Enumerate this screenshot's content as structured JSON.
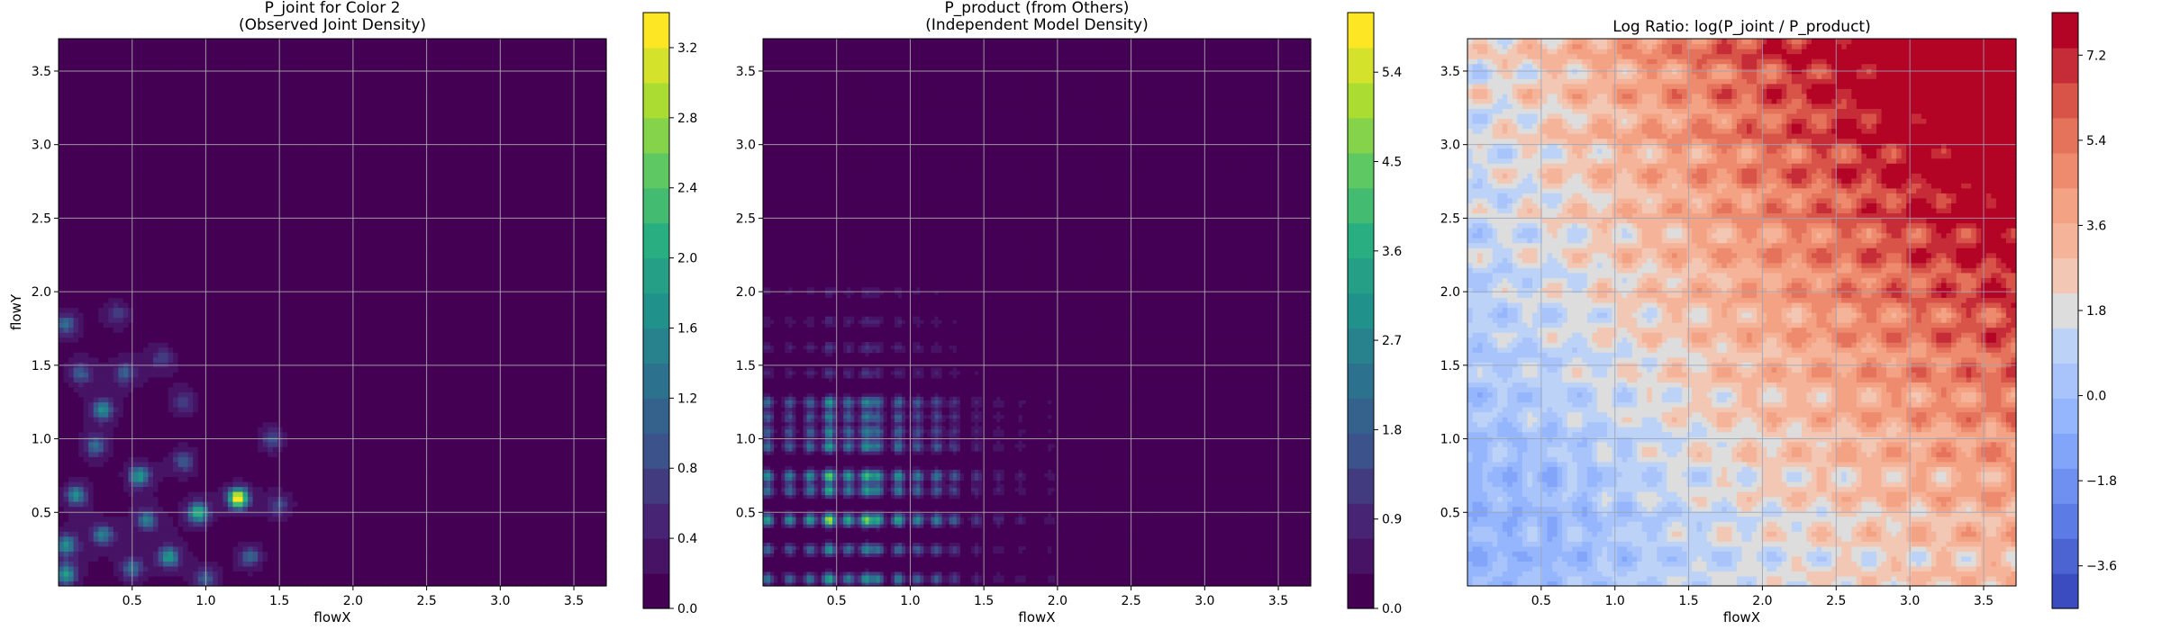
{
  "chart_data": [
    {
      "type": "heatmap",
      "style": "filled-contour",
      "colormap": "viridis",
      "title": "P_joint for Color 2\n(Observed Joint Density)",
      "xlabel": "flowX",
      "ylabel": "flowY",
      "xlim": [
        0.0,
        3.72
      ],
      "ylim": [
        0.0,
        3.72
      ],
      "xticks": [
        "0.5",
        "1.0",
        "1.5",
        "2.0",
        "2.5",
        "3.0",
        "3.5"
      ],
      "yticks": [
        "0.5",
        "1.0",
        "1.5",
        "2.0",
        "2.5",
        "3.0",
        "3.5"
      ],
      "grid": true,
      "background_level": 0.0,
      "peaks": [
        {
          "x": 0.05,
          "y": 0.08,
          "value": 1.6
        },
        {
          "x": 0.05,
          "y": 0.28,
          "value": 1.4
        },
        {
          "x": 0.12,
          "y": 0.62,
          "value": 1.4
        },
        {
          "x": 0.05,
          "y": 1.78,
          "value": 1.0
        },
        {
          "x": 0.3,
          "y": 1.2,
          "value": 1.4
        },
        {
          "x": 0.3,
          "y": 0.35,
          "value": 1.2
        },
        {
          "x": 0.55,
          "y": 0.75,
          "value": 1.6
        },
        {
          "x": 0.6,
          "y": 0.45,
          "value": 1.2
        },
        {
          "x": 0.75,
          "y": 0.2,
          "value": 1.6
        },
        {
          "x": 0.5,
          "y": 0.12,
          "value": 1.0
        },
        {
          "x": 0.25,
          "y": 0.95,
          "value": 1.0
        },
        {
          "x": 0.45,
          "y": 1.45,
          "value": 0.8
        },
        {
          "x": 0.95,
          "y": 0.5,
          "value": 2.0
        },
        {
          "x": 1.22,
          "y": 0.6,
          "value": 3.3
        },
        {
          "x": 0.85,
          "y": 0.85,
          "value": 0.8
        },
        {
          "x": 1.3,
          "y": 0.2,
          "value": 0.9
        },
        {
          "x": 1.45,
          "y": 1.0,
          "value": 0.7
        },
        {
          "x": 1.5,
          "y": 0.55,
          "value": 0.6
        },
        {
          "x": 0.15,
          "y": 1.45,
          "value": 0.8
        },
        {
          "x": 0.85,
          "y": 1.25,
          "value": 0.6
        },
        {
          "x": 0.4,
          "y": 1.85,
          "value": 0.5
        },
        {
          "x": 1.0,
          "y": 0.05,
          "value": 0.8
        },
        {
          "x": 0.7,
          "y": 1.55,
          "value": 0.5
        }
      ],
      "colorbar": {
        "min": 0.0,
        "max": 3.4,
        "ticks": [
          0.0,
          0.4,
          0.8,
          1.2,
          1.6,
          2.0,
          2.4,
          2.8,
          3.2
        ],
        "tick_labels": [
          "0.0",
          "0.4",
          "0.8",
          "1.2",
          "1.6",
          "2.0",
          "2.4",
          "2.8",
          "3.2"
        ]
      }
    },
    {
      "type": "heatmap",
      "style": "filled-contour",
      "colormap": "viridis",
      "title": "P_product (from Others)\n(Independent Model Density)",
      "xlabel": "flowX",
      "ylabel": "",
      "xlim": [
        0.0,
        3.72
      ],
      "ylim": [
        0.0,
        3.72
      ],
      "xticks": [
        "0.5",
        "1.0",
        "1.5",
        "2.0",
        "2.5",
        "3.0",
        "3.5"
      ],
      "yticks": [
        "0.5",
        "1.0",
        "1.5",
        "2.0",
        "2.5",
        "3.0",
        "3.5"
      ],
      "grid": true,
      "background_level": 0.0,
      "marginal_x_peaks": [
        {
          "x": 0.03,
          "value": 1.5
        },
        {
          "x": 0.18,
          "value": 1.3
        },
        {
          "x": 0.32,
          "value": 1.5
        },
        {
          "x": 0.45,
          "value": 2.3
        },
        {
          "x": 0.58,
          "value": 1.6
        },
        {
          "x": 0.7,
          "value": 2.0
        },
        {
          "x": 0.78,
          "value": 1.6
        },
        {
          "x": 0.92,
          "value": 1.6
        },
        {
          "x": 1.05,
          "value": 1.3
        },
        {
          "x": 1.18,
          "value": 1.2
        },
        {
          "x": 1.3,
          "value": 0.9
        },
        {
          "x": 1.45,
          "value": 0.6
        },
        {
          "x": 1.6,
          "value": 0.45
        },
        {
          "x": 1.75,
          "value": 0.35
        },
        {
          "x": 1.95,
          "value": 0.3
        }
      ],
      "marginal_y_peaks": [
        {
          "y": 0.05,
          "value": 1.6
        },
        {
          "y": 0.25,
          "value": 1.4
        },
        {
          "y": 0.45,
          "value": 2.3
        },
        {
          "y": 0.65,
          "value": 1.6
        },
        {
          "y": 0.75,
          "value": 2.0
        },
        {
          "y": 0.95,
          "value": 1.5
        },
        {
          "y": 1.05,
          "value": 1.3
        },
        {
          "y": 1.15,
          "value": 1.2
        },
        {
          "y": 1.25,
          "value": 1.4
        },
        {
          "y": 1.45,
          "value": 0.6
        },
        {
          "y": 1.62,
          "value": 0.55
        },
        {
          "y": 1.8,
          "value": 0.45
        },
        {
          "y": 2.0,
          "value": 0.35
        }
      ],
      "colorbar": {
        "min": 0.0,
        "max": 6.0,
        "ticks": [
          0.0,
          0.9,
          1.8,
          2.7,
          3.6,
          4.5,
          5.4
        ],
        "tick_labels": [
          "0.0",
          "0.9",
          "1.8",
          "2.7",
          "3.6",
          "4.5",
          "5.4"
        ]
      }
    },
    {
      "type": "heatmap",
      "style": "filled-contour",
      "colormap": "coolwarm",
      "title": "Log Ratio: log(P_joint / P_product)",
      "xlabel": "flowX",
      "ylabel": "",
      "xlim": [
        0.0,
        3.72
      ],
      "ylim": [
        0.0,
        3.72
      ],
      "xticks": [
        "0.5",
        "1.0",
        "1.5",
        "2.0",
        "2.5",
        "3.0",
        "3.5"
      ],
      "yticks": [
        "0.5",
        "1.0",
        "1.5",
        "2.0",
        "2.5",
        "3.0",
        "3.5"
      ],
      "grid": true,
      "trend": "log ratio near 0 at lower-left, rising toward upper-right corner (~7.5)",
      "colorbar": {
        "min": -4.5,
        "max": 8.1,
        "ticks": [
          -3.6,
          -1.8,
          0.0,
          1.8,
          3.6,
          5.4,
          7.2
        ],
        "tick_labels": [
          "−3.6",
          "−1.8",
          "0.0",
          "1.8",
          "3.6",
          "5.4",
          "7.2"
        ]
      }
    }
  ]
}
